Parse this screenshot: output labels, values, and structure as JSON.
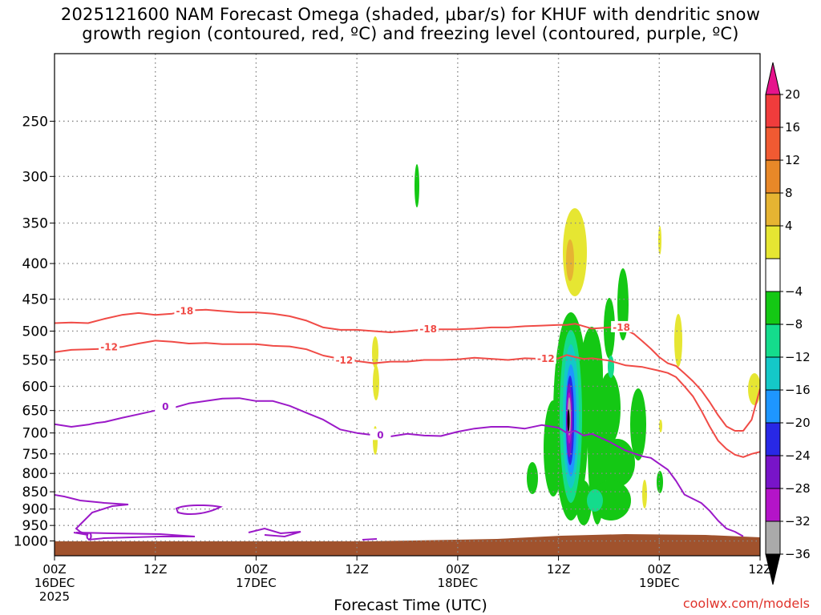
{
  "title_line1": "2025121600 NAM Forecast Omega (shaded, μbar/s) for KHUF with dendritic snow",
  "title_line2": "growth region (contoured, red, ºC) and freezing level (contoured, purple, ºC)",
  "credit": "coolwx.com/models",
  "chart_data": {
    "type": "time-height",
    "title": "2025121600 NAM Forecast Omega (shaded, μbar/s) for KHUF with dendritic snow growth region (contoured, red, ºC) and freezing level (contoured, purple, ºC)",
    "xlabel": "Forecast Time (UTC)",
    "ylabel": "",
    "x_hours_range": [
      0,
      84
    ],
    "y_log_pressure": true,
    "y_range_hpa": [
      1050,
      200
    ],
    "y_ticks": [
      250,
      300,
      350,
      400,
      450,
      500,
      550,
      600,
      650,
      700,
      750,
      800,
      850,
      900,
      950,
      1000
    ],
    "x_ticks": [
      {
        "hour": 0,
        "label": "00Z",
        "date": "16DEC",
        "year": "2025"
      },
      {
        "hour": 12,
        "label": "12Z",
        "date": "",
        "year": ""
      },
      {
        "hour": 24,
        "label": "00Z",
        "date": "17DEC",
        "year": ""
      },
      {
        "hour": 36,
        "label": "12Z",
        "date": "",
        "year": ""
      },
      {
        "hour": 48,
        "label": "00Z",
        "date": "18DEC",
        "year": ""
      },
      {
        "hour": 60,
        "label": "12Z",
        "date": "",
        "year": ""
      },
      {
        "hour": 72,
        "label": "00Z",
        "date": "19DEC",
        "year": ""
      },
      {
        "hour": 84,
        "label": "12Z",
        "date": "",
        "year": ""
      }
    ],
    "grid": "dotted",
    "colorbar": {
      "ticks": [
        "20",
        "16",
        "12",
        "8",
        "4",
        "−4",
        "−8",
        "−12",
        "−16",
        "−20",
        "−24",
        "−28",
        "−32",
        "−36"
      ],
      "bins": [
        {
          "range": [
            16,
            20
          ],
          "color": "#f03c3c"
        },
        {
          "range": [
            12,
            16
          ],
          "color": "#f05a32"
        },
        {
          "range": [
            8,
            12
          ],
          "color": "#e88828"
        },
        {
          "range": [
            4,
            8
          ],
          "color": "#e6b432"
        },
        {
          "range": [
            -4,
            4
          ],
          "color": "#e6e632"
        },
        {
          "range": [
            -8,
            -4
          ],
          "color": "#ffffff"
        },
        {
          "range": [
            -12,
            -8
          ],
          "color": "#14c814"
        },
        {
          "range": [
            -16,
            -12
          ],
          "color": "#14dc8c"
        },
        {
          "range": [
            -20,
            -16
          ],
          "color": "#14c8c8"
        },
        {
          "range": [
            -24,
            -20
          ],
          "color": "#1e96ff"
        },
        {
          "range": [
            -28,
            -24
          ],
          "color": "#2828e6"
        },
        {
          "range": [
            -32,
            -28
          ],
          "color": "#7814c8"
        },
        {
          "range": [
            -36,
            -32
          ],
          "color": "#b414c8"
        },
        {
          "range": [
            -40,
            -36
          ],
          "color": "#aaaaaa"
        }
      ],
      "top_extend_color": "#e6148c",
      "bottom_extend_color": "#000000"
    },
    "series": [
      {
        "name": "-18",
        "kind": "contour",
        "color": "#f04b46",
        "points": [
          [
            0,
            487
          ],
          [
            2,
            486
          ],
          [
            4,
            487
          ],
          [
            6,
            480
          ],
          [
            8,
            474
          ],
          [
            10,
            471
          ],
          [
            12,
            474
          ],
          [
            14,
            472
          ],
          [
            16,
            467
          ],
          [
            18,
            466
          ],
          [
            20,
            468
          ],
          [
            22,
            470
          ],
          [
            24,
            470
          ],
          [
            26,
            472
          ],
          [
            28,
            476
          ],
          [
            30,
            483
          ],
          [
            32,
            494
          ],
          [
            34,
            498
          ],
          [
            36,
            498
          ],
          [
            38,
            500
          ],
          [
            40,
            502
          ],
          [
            42,
            500
          ],
          [
            44,
            497
          ],
          [
            46,
            497
          ],
          [
            48,
            497
          ],
          [
            50,
            496
          ],
          [
            52,
            494
          ],
          [
            54,
            494
          ],
          [
            56,
            492
          ],
          [
            58,
            491
          ],
          [
            60,
            490
          ],
          [
            61,
            490
          ],
          [
            62,
            488
          ],
          [
            64,
            496
          ],
          [
            66,
            494
          ],
          [
            67,
            492
          ],
          [
            68,
            498
          ],
          [
            69,
            505
          ],
          [
            70,
            517
          ],
          [
            71,
            530
          ],
          [
            72,
            545
          ],
          [
            73,
            556
          ],
          [
            74,
            561
          ],
          [
            75,
            575
          ],
          [
            76,
            590
          ],
          [
            77,
            608
          ],
          [
            78,
            632
          ],
          [
            79,
            660
          ],
          [
            80,
            685
          ],
          [
            81,
            695
          ],
          [
            82,
            695
          ],
          [
            83,
            670
          ],
          [
            84,
            605
          ]
        ],
        "labels": [
          {
            "x": 15.5,
            "y": 468
          },
          {
            "x": 44.5,
            "y": 497
          },
          {
            "x": 67.5,
            "y": 494
          }
        ]
      },
      {
        "name": "-12",
        "kind": "contour",
        "color": "#f04b46",
        "points": [
          [
            0,
            536
          ],
          [
            2,
            532
          ],
          [
            4,
            531
          ],
          [
            6,
            530
          ],
          [
            8,
            527
          ],
          [
            10,
            521
          ],
          [
            12,
            516
          ],
          [
            14,
            518
          ],
          [
            16,
            521
          ],
          [
            18,
            520
          ],
          [
            20,
            522
          ],
          [
            22,
            522
          ],
          [
            24,
            522
          ],
          [
            26,
            525
          ],
          [
            28,
            526
          ],
          [
            30,
            531
          ],
          [
            32,
            542
          ],
          [
            34,
            548
          ],
          [
            36,
            552
          ],
          [
            38,
            556
          ],
          [
            40,
            553
          ],
          [
            42,
            553
          ],
          [
            44,
            550
          ],
          [
            46,
            550
          ],
          [
            48,
            549
          ],
          [
            50,
            546
          ],
          [
            52,
            548
          ],
          [
            54,
            550
          ],
          [
            56,
            547
          ],
          [
            58,
            548
          ],
          [
            60,
            547
          ],
          [
            61,
            541
          ],
          [
            62,
            545
          ],
          [
            63,
            548
          ],
          [
            64,
            547
          ],
          [
            66,
            551
          ],
          [
            68,
            560
          ],
          [
            70,
            563
          ],
          [
            72,
            570
          ],
          [
            73,
            574
          ],
          [
            74,
            582
          ],
          [
            75,
            600
          ],
          [
            76,
            620
          ],
          [
            77,
            650
          ],
          [
            78,
            685
          ],
          [
            79,
            718
          ],
          [
            80,
            738
          ],
          [
            81,
            752
          ],
          [
            82,
            758
          ],
          [
            83,
            750
          ],
          [
            84,
            745
          ]
        ],
        "labels": [
          {
            "x": 6.5,
            "y": 527
          },
          {
            "x": 34.5,
            "y": 551
          },
          {
            "x": 58.5,
            "y": 548
          }
        ]
      },
      {
        "name": "0",
        "kind": "contour",
        "color": "#9b19c8",
        "points": [
          [
            0,
            680
          ],
          [
            2,
            686
          ],
          [
            4,
            681
          ],
          [
            5,
            677
          ],
          [
            6,
            675
          ],
          [
            8,
            666
          ],
          [
            10,
            658
          ],
          [
            12,
            650
          ],
          [
            13,
            640
          ],
          [
            14,
            645
          ],
          [
            16,
            635
          ],
          [
            18,
            630
          ],
          [
            20,
            625
          ],
          [
            22,
            624
          ],
          [
            24,
            630
          ],
          [
            26,
            630
          ],
          [
            28,
            640
          ],
          [
            30,
            655
          ],
          [
            32,
            670
          ],
          [
            34,
            692
          ],
          [
            36,
            700
          ],
          [
            38,
            705
          ],
          [
            40,
            708
          ],
          [
            42,
            702
          ],
          [
            44,
            706
          ],
          [
            46,
            707
          ],
          [
            48,
            697
          ],
          [
            50,
            690
          ],
          [
            52,
            686
          ],
          [
            54,
            686
          ],
          [
            56,
            690
          ],
          [
            58,
            682
          ],
          [
            60,
            688
          ],
          [
            61,
            700
          ],
          [
            62,
            695
          ],
          [
            63,
            706
          ],
          [
            64,
            702
          ],
          [
            66,
            720
          ],
          [
            68,
            742
          ],
          [
            70,
            756
          ],
          [
            71,
            760
          ],
          [
            72,
            775
          ],
          [
            73,
            790
          ],
          [
            74,
            820
          ],
          [
            75,
            858
          ],
          [
            76,
            870
          ],
          [
            77,
            882
          ],
          [
            78,
            905
          ],
          [
            79,
            935
          ],
          [
            80,
            960
          ],
          [
            81,
            970
          ],
          [
            82,
            985
          ]
        ],
        "labels": [
          {
            "x": 13.2,
            "y": 642
          },
          {
            "x": 38.8,
            "y": 705
          }
        ]
      }
    ]
  }
}
